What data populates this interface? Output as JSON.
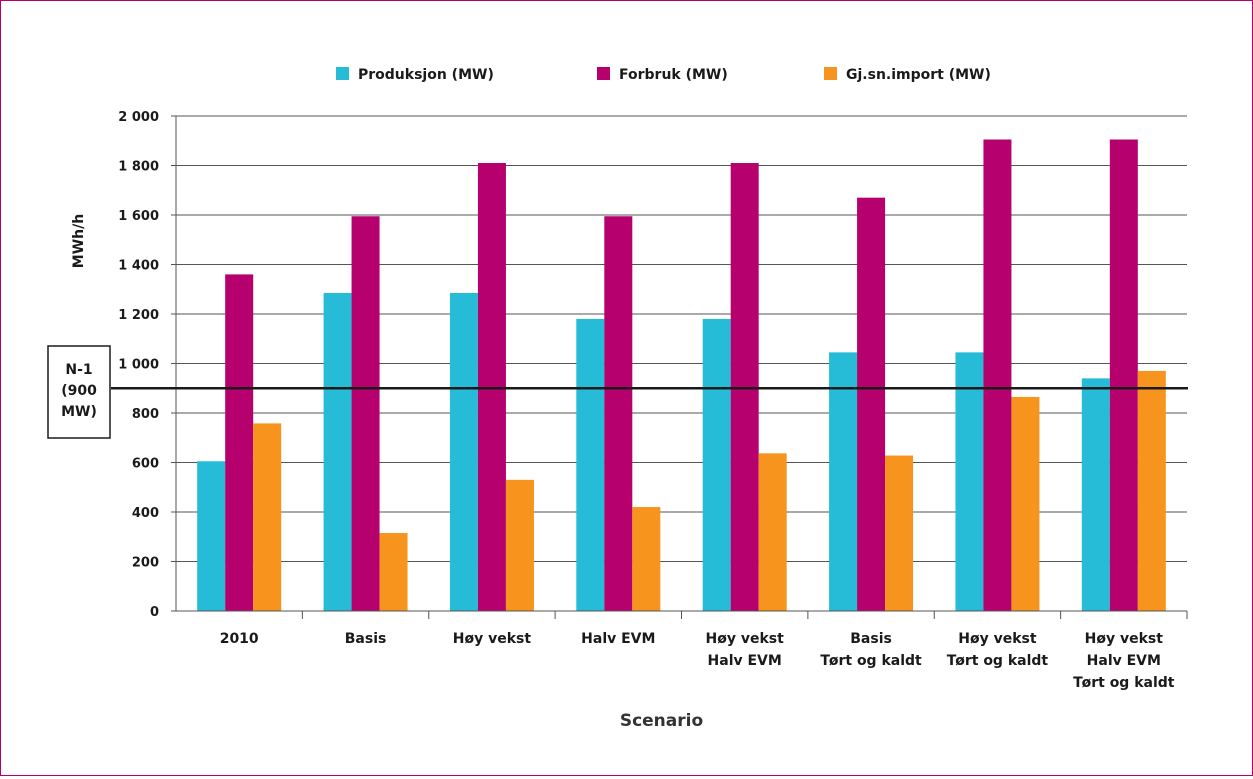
{
  "chart_data": {
    "type": "bar",
    "title": "",
    "xlabel": "Scenario",
    "ylabel": "MWh/h",
    "ylim": [
      0,
      2000
    ],
    "yticks": [
      0,
      200,
      400,
      600,
      800,
      1000,
      1200,
      1400,
      1600,
      1800,
      2000
    ],
    "ytick_labels": [
      "0",
      "200",
      "400",
      "600",
      "800",
      "1 000",
      "1 200",
      "1 400",
      "1 600",
      "1 800",
      "2 000"
    ],
    "grid": true,
    "legend_position": "top",
    "categories": [
      [
        "2010"
      ],
      [
        "Basis"
      ],
      [
        "Høy vekst"
      ],
      [
        "Halv EVM"
      ],
      [
        "Høy vekst",
        "Halv EVM"
      ],
      [
        "Basis",
        "Tørt og kaldt"
      ],
      [
        "Høy vekst",
        "Tørt og kaldt"
      ],
      [
        "Høy vekst",
        "Halv EVM",
        "Tørt og kaldt"
      ]
    ],
    "series": [
      {
        "name": "Produksjon (MW)",
        "color": "#26bcd7",
        "values": [
          605,
          1285,
          1285,
          1180,
          1180,
          1045,
          1045,
          940
        ]
      },
      {
        "name": "Forbruk (MW)",
        "color": "#b5006e",
        "values": [
          1360,
          1595,
          1810,
          1595,
          1810,
          1670,
          1905,
          1905
        ]
      },
      {
        "name": "Gj.sn.import (MW)",
        "color": "#f7941d",
        "values": [
          758,
          315,
          530,
          420,
          637,
          628,
          865,
          970
        ]
      }
    ],
    "reference_line": {
      "value": 900,
      "label_lines": [
        "N-1",
        "(900",
        "MW)"
      ]
    }
  }
}
